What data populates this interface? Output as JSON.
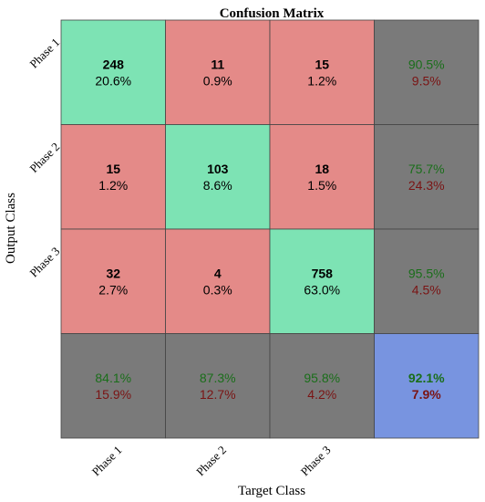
{
  "chart_data": {
    "type": "heatmap",
    "title": "Confusion Matrix",
    "xlabel": "Target Class",
    "ylabel": "Output Class",
    "classes": [
      "Phase 1",
      "Phase 2",
      "Phase 3"
    ],
    "matrix": [
      [
        248,
        11,
        15
      ],
      [
        15,
        103,
        18
      ],
      [
        32,
        4,
        758
      ]
    ],
    "cell_percent": [
      [
        "20.6%",
        "0.9%",
        "1.2%"
      ],
      [
        "1.2%",
        "8.6%",
        "1.5%"
      ],
      [
        "2.7%",
        "0.3%",
        "63.0%"
      ]
    ],
    "row_summary": [
      {
        "correct": "90.5%",
        "error": "9.5%"
      },
      {
        "correct": "75.7%",
        "error": "24.3%"
      },
      {
        "correct": "95.5%",
        "error": "4.5%"
      }
    ],
    "col_summary": [
      {
        "correct": "84.1%",
        "error": "15.9%"
      },
      {
        "correct": "87.3%",
        "error": "12.7%"
      },
      {
        "correct": "95.8%",
        "error": "4.2%"
      }
    ],
    "overall": {
      "correct": "92.1%",
      "error": "7.9%"
    },
    "colors": {
      "diagonal": "#7de3b4",
      "off_diagonal": "#e48a88",
      "summary": "#7a7a7a",
      "overall": "#7894e0",
      "correct_text": "#1a6e1a",
      "error_text": "#7a1414"
    }
  }
}
